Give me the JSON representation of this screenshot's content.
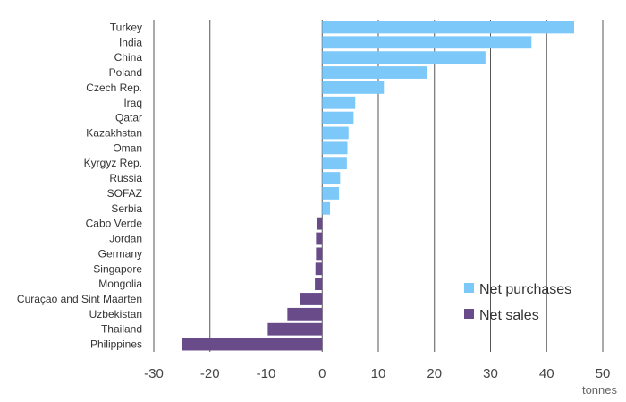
{
  "chart_data": {
    "type": "bar",
    "orientation": "horizontal",
    "categories": [
      "Turkey",
      "India",
      "China",
      "Poland",
      "Czech Rep.",
      "Iraq",
      "Qatar",
      "Kazakhstan",
      "Oman",
      "Kyrgyz Rep.",
      "Russia",
      "SOFAZ",
      "Serbia",
      "Cabo Verde",
      "Jordan",
      "Germany",
      "Singapore",
      "Mongolia",
      "Curaçao and Sint Maarten",
      "Uzbekistan",
      "Thailand",
      "Philippines"
    ],
    "values": [
      44.9,
      37.3,
      29.1,
      18.7,
      11.0,
      5.9,
      5.6,
      4.7,
      4.5,
      4.4,
      3.2,
      3.0,
      1.4,
      -1.0,
      -1.1,
      -1.1,
      -1.2,
      -1.3,
      -4.0,
      -6.2,
      -9.7,
      -25.0
    ],
    "series": [
      {
        "name": "Net purchases",
        "color": "#7cc8f8"
      },
      {
        "name": "Net sales",
        "color": "#6a4b8a"
      }
    ],
    "xlim": [
      -30,
      50
    ],
    "xticks": [
      -30,
      -20,
      -10,
      0,
      10,
      20,
      30,
      40,
      50
    ],
    "unit": "tonnes",
    "grid": "vertical",
    "legend_position": "bottom-right"
  }
}
